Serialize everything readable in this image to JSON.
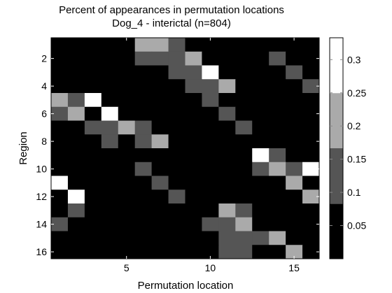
{
  "chart_data": {
    "type": "heatmap",
    "title": "Percent of appearances in permutation locations",
    "subtitle": "Dog_4 - interictal (n=804)",
    "xlabel": "Permutation location",
    "ylabel": "Region",
    "x_range": [
      1,
      16
    ],
    "y_range": [
      1,
      16
    ],
    "x_ticks": [
      5,
      10,
      15
    ],
    "y_ticks": [
      2,
      4,
      6,
      8,
      10,
      12,
      14,
      16
    ],
    "colorbar": {
      "levels": [
        {
          "min": 0.0,
          "max": 0.083,
          "color": "#000000"
        },
        {
          "min": 0.083,
          "max": 0.167,
          "color": "#555555"
        },
        {
          "min": 0.167,
          "max": 0.25,
          "color": "#aaaaaa"
        },
        {
          "min": 0.25,
          "max": 0.333,
          "color": "#ffffff"
        }
      ],
      "ticks": [
        0.05,
        0.1,
        0.15,
        0.2,
        0.25,
        0.3
      ],
      "range": [
        0.0,
        0.333
      ]
    },
    "levels_note": "grid rows are Region 1..16 (top to bottom), columns are Permutation location 1..16",
    "grid": [
      [
        0,
        0,
        0,
        0,
        0,
        2,
        2,
        1,
        0,
        0,
        0,
        0,
        0,
        0,
        0,
        0
      ],
      [
        0,
        0,
        0,
        0,
        0,
        1,
        1,
        1,
        2,
        0,
        0,
        0,
        0,
        1,
        0,
        0
      ],
      [
        0,
        0,
        0,
        0,
        0,
        0,
        0,
        1,
        1,
        3,
        0,
        0,
        0,
        0,
        1,
        0
      ],
      [
        0,
        0,
        0,
        0,
        0,
        0,
        0,
        0,
        1,
        1,
        2,
        0,
        0,
        0,
        0,
        1
      ],
      [
        2,
        1,
        3,
        0,
        0,
        0,
        0,
        0,
        0,
        1,
        0,
        0,
        0,
        0,
        0,
        0
      ],
      [
        1,
        2,
        0,
        3,
        0,
        0,
        0,
        0,
        0,
        0,
        1,
        0,
        0,
        0,
        0,
        0
      ],
      [
        0,
        0,
        1,
        1,
        2,
        1,
        0,
        0,
        0,
        0,
        0,
        1,
        0,
        0,
        0,
        0
      ],
      [
        0,
        0,
        0,
        1,
        0,
        1,
        2,
        0,
        0,
        0,
        0,
        0,
        0,
        0,
        0,
        0
      ],
      [
        0,
        0,
        0,
        0,
        0,
        0,
        0,
        0,
        0,
        0,
        0,
        0,
        3,
        1,
        0,
        0
      ],
      [
        0,
        0,
        0,
        0,
        0,
        1,
        0,
        0,
        0,
        0,
        0,
        0,
        1,
        2,
        1,
        3
      ],
      [
        3,
        0,
        0,
        0,
        0,
        0,
        1,
        0,
        0,
        0,
        0,
        0,
        0,
        0,
        2,
        0
      ],
      [
        0,
        3,
        0,
        0,
        0,
        0,
        0,
        1,
        0,
        0,
        0,
        0,
        0,
        0,
        0,
        2
      ],
      [
        0,
        1,
        0,
        0,
        0,
        0,
        0,
        0,
        0,
        0,
        2,
        1,
        0,
        0,
        0,
        0
      ],
      [
        1,
        0,
        0,
        0,
        0,
        0,
        0,
        0,
        0,
        1,
        1,
        2,
        0,
        0,
        0,
        0
      ],
      [
        0,
        0,
        0,
        0,
        0,
        0,
        0,
        0,
        0,
        0,
        1,
        1,
        1,
        2,
        0,
        0
      ],
      [
        0,
        0,
        0,
        0,
        0,
        0,
        0,
        0,
        0,
        0,
        1,
        1,
        0,
        0,
        2,
        0
      ]
    ]
  }
}
